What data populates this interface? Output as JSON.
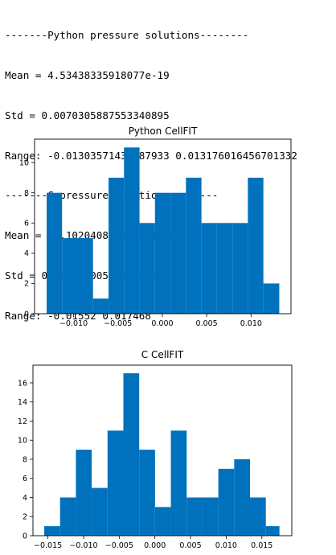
{
  "output_lines": [
    "-------Python pressure solutions--------",
    "Mean = 4.53438335918077e-19",
    "Std = 0.0070305887553340895",
    "Range: -0.01303571431387933 0.013176016456701332",
    "-------C pressure solutions--------",
    "Mean = -5.102040816338714e-08",
    "Std = 0.00772400535089549",
    "Range: -0.01552 0.017468"
  ],
  "bar_color": "#0072bd",
  "chart_data": [
    {
      "type": "bar",
      "title": "Python CellFIT",
      "xlabel": "",
      "ylabel": "",
      "bins": [
        {
          "x0": -0.01304,
          "x1": -0.0113,
          "count": 8
        },
        {
          "x0": -0.0113,
          "x1": -0.00955,
          "count": 5
        },
        {
          "x0": -0.00955,
          "x1": -0.00781,
          "count": 5
        },
        {
          "x0": -0.00781,
          "x1": -0.00606,
          "count": 1
        },
        {
          "x0": -0.00606,
          "x1": -0.00432,
          "count": 9
        },
        {
          "x0": -0.00432,
          "x1": -0.00257,
          "count": 11
        },
        {
          "x0": -0.00257,
          "x1": -0.00083,
          "count": 6
        },
        {
          "x0": -0.00083,
          "x1": 0.00092,
          "count": 8
        },
        {
          "x0": 0.00092,
          "x1": 0.00266,
          "count": 8
        },
        {
          "x0": 0.00266,
          "x1": 0.00441,
          "count": 9
        },
        {
          "x0": 0.00441,
          "x1": 0.00615,
          "count": 6
        },
        {
          "x0": 0.00615,
          "x1": 0.0079,
          "count": 6
        },
        {
          "x0": 0.0079,
          "x1": 0.00964,
          "count": 6
        },
        {
          "x0": 0.00964,
          "x1": 0.01139,
          "count": 9
        },
        {
          "x0": 0.01139,
          "x1": 0.01318,
          "count": 2
        }
      ],
      "xlim": [
        -0.0144,
        0.0145
      ],
      "ylim": [
        0,
        11.55
      ],
      "xticks": [
        -0.01,
        -0.005,
        0.0,
        0.005,
        0.01
      ],
      "xtick_labels": [
        "−0.010",
        "−0.005",
        "0.000",
        "0.005",
        "0.010"
      ],
      "yticks": [
        0,
        2,
        4,
        6,
        8,
        10
      ],
      "ytick_labels": [
        "0",
        "2",
        "4",
        "6",
        "8",
        "10"
      ]
    },
    {
      "type": "bar",
      "title": "C CellFIT",
      "xlabel": "",
      "ylabel": "",
      "bins": [
        {
          "x0": -0.01552,
          "x1": -0.0133,
          "count": 1
        },
        {
          "x0": -0.0133,
          "x1": -0.01108,
          "count": 4
        },
        {
          "x0": -0.01108,
          "x1": -0.00886,
          "count": 9
        },
        {
          "x0": -0.00886,
          "x1": -0.00664,
          "count": 5
        },
        {
          "x0": -0.00664,
          "x1": -0.00442,
          "count": 11
        },
        {
          "x0": -0.00442,
          "x1": -0.0022,
          "count": 17
        },
        {
          "x0": -0.0022,
          "x1": 2e-05,
          "count": 9
        },
        {
          "x0": 2e-05,
          "x1": 0.00224,
          "count": 3
        },
        {
          "x0": 0.00224,
          "x1": 0.00446,
          "count": 11
        },
        {
          "x0": 0.00446,
          "x1": 0.00668,
          "count": 4
        },
        {
          "x0": 0.00668,
          "x1": 0.0089,
          "count": 4
        },
        {
          "x0": 0.0089,
          "x1": 0.01112,
          "count": 7
        },
        {
          "x0": 0.01112,
          "x1": 0.01334,
          "count": 8
        },
        {
          "x0": 0.01334,
          "x1": 0.01556,
          "count": 4
        },
        {
          "x0": 0.01556,
          "x1": 0.01747,
          "count": 1
        }
      ],
      "xlim": [
        -0.0171,
        0.0192
      ],
      "ylim": [
        0,
        17.85
      ],
      "xticks": [
        -0.015,
        -0.01,
        -0.005,
        0.0,
        0.005,
        0.01,
        0.015
      ],
      "xtick_labels": [
        "−0.015",
        "−0.010",
        "−0.005",
        "0.000",
        "0.005",
        "0.010",
        "0.015"
      ],
      "yticks": [
        0,
        2,
        4,
        6,
        8,
        10,
        12,
        14,
        16
      ],
      "ytick_labels": [
        "0",
        "2",
        "4",
        "6",
        "8",
        "10",
        "12",
        "14",
        "16"
      ]
    }
  ]
}
